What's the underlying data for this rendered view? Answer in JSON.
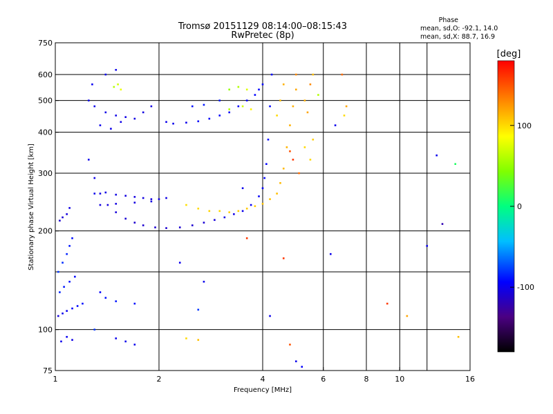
{
  "chart_data": {
    "type": "scatter",
    "title": "Tromsø 20151129 08:14:00–08:15:43",
    "subtitle": "RwPretec (8p)",
    "xlabel": "Frequency [MHz]",
    "ylabel": "Stationary phase Virtual Height [km]",
    "x_scale": "log",
    "y_scale": "log",
    "xlim": [
      1,
      16
    ],
    "ylim": [
      75,
      750
    ],
    "x_ticks": [
      1,
      2,
      4,
      6,
      8,
      10,
      16
    ],
    "x_grid": [
      2,
      4,
      6,
      8,
      10,
      12
    ],
    "y_ticks": [
      75,
      100,
      200,
      300,
      400,
      500,
      600,
      750
    ],
    "y_grid": [
      100,
      150,
      200,
      300,
      400,
      500,
      600
    ],
    "grid": true,
    "phase_box": {
      "title": "Phase",
      "o_line": "mean, sd,O: -92.1, 14.0",
      "x_line": "mean, sd,X: 88.7, 16.9"
    },
    "colorbar": {
      "label": "[deg]",
      "min": -180,
      "max": 180,
      "ticks": [
        -100,
        0,
        100
      ]
    },
    "series": [
      {
        "points": [
          [
            1.02,
            110,
            -105
          ],
          [
            1.05,
            112,
            -100
          ],
          [
            1.08,
            114,
            -98
          ],
          [
            1.12,
            116,
            -95
          ],
          [
            1.16,
            118,
            -92
          ],
          [
            1.2,
            120,
            -90
          ],
          [
            1.03,
            130,
            -85
          ],
          [
            1.06,
            135,
            -88
          ],
          [
            1.1,
            140,
            -90
          ],
          [
            1.14,
            145,
            -92
          ],
          [
            1.02,
            150,
            -80
          ],
          [
            1.05,
            160,
            -82
          ],
          [
            1.08,
            170,
            -85
          ],
          [
            1.1,
            180,
            -88
          ],
          [
            1.12,
            190,
            -90
          ],
          [
            1.03,
            215,
            -110
          ],
          [
            1.05,
            220,
            -108
          ],
          [
            1.08,
            225,
            -105
          ],
          [
            1.1,
            235,
            -103
          ],
          [
            1.04,
            92,
            -100
          ],
          [
            1.08,
            95,
            -98
          ],
          [
            1.12,
            93,
            -102
          ],
          [
            1.25,
            330,
            -100
          ],
          [
            1.3,
            290,
            -102
          ],
          [
            1.35,
            260,
            -104
          ],
          [
            1.42,
            240,
            -105
          ],
          [
            1.5,
            228,
            -106
          ],
          [
            1.6,
            218,
            -108
          ],
          [
            1.7,
            212,
            -110
          ],
          [
            1.8,
            208,
            -110
          ],
          [
            1.95,
            205,
            -110
          ],
          [
            2.1,
            204,
            -110
          ],
          [
            2.3,
            205,
            -110
          ],
          [
            2.5,
            208,
            -110
          ],
          [
            2.7,
            212,
            -108
          ],
          [
            2.9,
            216,
            -106
          ],
          [
            3.1,
            220,
            -104
          ],
          [
            3.3,
            225,
            -102
          ],
          [
            3.5,
            230,
            -100
          ],
          [
            3.7,
            240,
            -98
          ],
          [
            3.9,
            255,
            -96
          ],
          [
            4.0,
            270,
            -95
          ],
          [
            4.05,
            290,
            -94
          ],
          [
            4.1,
            320,
            -93
          ],
          [
            4.15,
            380,
            -92
          ],
          [
            4.2,
            480,
            -92
          ],
          [
            4.25,
            600,
            -93
          ],
          [
            1.3,
            260,
            -100
          ],
          [
            1.4,
            262,
            -102
          ],
          [
            1.5,
            258,
            -103
          ],
          [
            1.6,
            256,
            -104
          ],
          [
            1.7,
            254,
            -104
          ],
          [
            1.8,
            252,
            -104
          ],
          [
            1.9,
            250,
            -104
          ],
          [
            2.0,
            250,
            -104
          ],
          [
            2.1,
            252,
            -103
          ],
          [
            1.35,
            240,
            -104
          ],
          [
            1.5,
            242,
            -104
          ],
          [
            1.7,
            244,
            -104
          ],
          [
            1.9,
            246,
            -104
          ],
          [
            1.25,
            500,
            -100
          ],
          [
            1.3,
            480,
            -101
          ],
          [
            1.4,
            460,
            -102
          ],
          [
            1.5,
            450,
            -102
          ],
          [
            1.6,
            445,
            -102
          ],
          [
            1.7,
            440,
            -103
          ],
          [
            1.8,
            460,
            -104
          ],
          [
            1.9,
            480,
            -104
          ],
          [
            1.35,
            420,
            -100
          ],
          [
            1.45,
            410,
            -101
          ],
          [
            1.55,
            430,
            -102
          ],
          [
            1.28,
            560,
            -98
          ],
          [
            1.4,
            600,
            -100
          ],
          [
            1.5,
            620,
            -100
          ],
          [
            1.48,
            550,
            60
          ],
          [
            1.52,
            560,
            70
          ],
          [
            1.55,
            540,
            80
          ],
          [
            2.1,
            430,
            -100
          ],
          [
            2.2,
            425,
            -100
          ],
          [
            2.4,
            428,
            -100
          ],
          [
            2.6,
            432,
            -95
          ],
          [
            2.8,
            440,
            -95
          ],
          [
            3.0,
            450,
            -95
          ],
          [
            3.2,
            460,
            -96
          ],
          [
            3.4,
            480,
            -96
          ],
          [
            3.6,
            500,
            -95
          ],
          [
            3.8,
            520,
            -94
          ],
          [
            3.9,
            540,
            -93
          ],
          [
            4.0,
            560,
            -92
          ],
          [
            2.5,
            480,
            -90
          ],
          [
            2.7,
            485,
            -88
          ],
          [
            3.0,
            500,
            -88
          ],
          [
            3.2,
            540,
            50
          ],
          [
            3.4,
            550,
            60
          ],
          [
            3.6,
            540,
            75
          ],
          [
            3.2,
            470,
            60
          ],
          [
            3.5,
            480,
            70
          ],
          [
            3.7,
            470,
            90
          ],
          [
            3.0,
            230,
            100
          ],
          [
            3.2,
            228,
            105
          ],
          [
            3.4,
            230,
            105
          ],
          [
            3.6,
            234,
            106
          ],
          [
            3.8,
            238,
            106
          ],
          [
            4.0,
            242,
            108
          ],
          [
            4.2,
            250,
            108
          ],
          [
            4.4,
            260,
            110
          ],
          [
            4.5,
            280,
            112
          ],
          [
            4.6,
            310,
            112
          ],
          [
            4.7,
            360,
            114
          ],
          [
            4.8,
            420,
            115
          ],
          [
            4.9,
            480,
            115
          ],
          [
            5.0,
            540,
            118
          ],
          [
            2.4,
            240,
            98
          ],
          [
            2.6,
            234,
            100
          ],
          [
            2.8,
            230,
            102
          ],
          [
            4.4,
            450,
            100
          ],
          [
            4.5,
            500,
            110
          ],
          [
            4.6,
            560,
            115
          ],
          [
            5.0,
            600,
            130
          ],
          [
            5.3,
            500,
            115
          ],
          [
            5.4,
            460,
            120
          ],
          [
            5.3,
            360,
            100
          ],
          [
            5.5,
            330,
            100
          ],
          [
            5.6,
            380,
            105
          ],
          [
            5.5,
            560,
            130
          ],
          [
            5.6,
            600,
            110
          ],
          [
            5.8,
            520,
            60
          ],
          [
            4.8,
            350,
            150
          ],
          [
            4.9,
            330,
            160
          ],
          [
            5.1,
            300,
            140
          ],
          [
            2.3,
            160,
            -100
          ],
          [
            2.6,
            115,
            -80
          ],
          [
            2.7,
            140,
            -100
          ],
          [
            3.5,
            270,
            -100
          ],
          [
            3.6,
            190,
            160
          ],
          [
            4.2,
            110,
            -100
          ],
          [
            4.6,
            165,
            160
          ],
          [
            4.8,
            90,
            150
          ],
          [
            5.0,
            80,
            -100
          ],
          [
            5.2,
            77,
            -95
          ],
          [
            6.3,
            170,
            -100
          ],
          [
            6.5,
            420,
            -100
          ],
          [
            6.8,
            600,
            140
          ],
          [
            7.0,
            480,
            120
          ],
          [
            6.9,
            450,
            100
          ],
          [
            9.2,
            120,
            160
          ],
          [
            10.5,
            110,
            120
          ],
          [
            12.0,
            180,
            -100
          ],
          [
            12.8,
            340,
            -100
          ],
          [
            13.3,
            210,
            -120
          ],
          [
            14.5,
            320,
            10
          ],
          [
            14.8,
            95,
            110
          ],
          [
            2.4,
            94,
            100
          ],
          [
            2.6,
            93,
            110
          ],
          [
            1.3,
            100,
            -80
          ],
          [
            1.5,
            94,
            -100
          ],
          [
            1.6,
            92,
            -100
          ],
          [
            1.7,
            90,
            -100
          ],
          [
            1.4,
            125,
            -90
          ],
          [
            1.5,
            122,
            -88
          ],
          [
            1.7,
            120,
            -90
          ],
          [
            1.35,
            130,
            -95
          ]
        ]
      }
    ]
  }
}
